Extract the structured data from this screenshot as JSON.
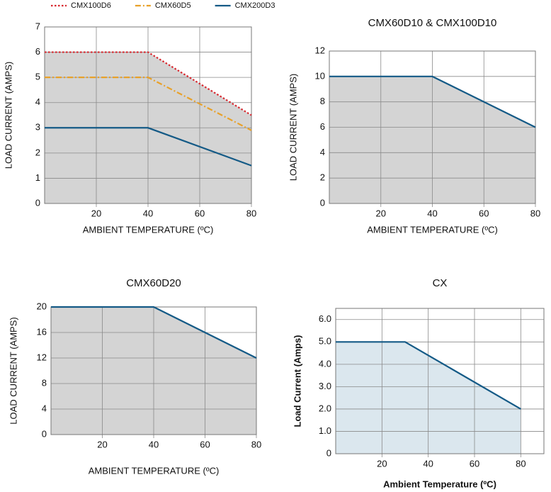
{
  "chart_data": [
    {
      "type": "line",
      "x": [
        0,
        40,
        80
      ],
      "series": [
        {
          "name": "CMX100D6",
          "color": "#d7282f",
          "dash": "dotted",
          "values": [
            6,
            6,
            3.5
          ]
        },
        {
          "name": "CMX60D5",
          "color": "#e8a12a",
          "dash": "dashdot",
          "values": [
            5,
            5,
            2.9
          ]
        },
        {
          "name": "CMX200D3",
          "color": "#145a86",
          "dash": "solid",
          "values": [
            3,
            3,
            1.5
          ]
        }
      ],
      "xlabel": "AMBIENT TEMPERATURE (ºC)",
      "ylabel": "LOAD CURRENT (AMPS)",
      "xlim": [
        0,
        80
      ],
      "xticks": [
        20,
        40,
        60,
        80
      ],
      "ylim": [
        0,
        7
      ],
      "yticks": [
        0,
        1,
        2,
        3,
        4,
        5,
        6,
        7
      ],
      "grid": true,
      "fill_color": "#d4d4d4",
      "legend": "top"
    },
    {
      "type": "line",
      "title": "CMX60D10 & CMX100D10",
      "x": [
        0,
        40,
        80
      ],
      "values": [
        10,
        10,
        6
      ],
      "color": "#145a86",
      "xlabel": "AMBIENT TEMPERATURE (ºC)",
      "ylabel": "LOAD CURRENT (AMPS)",
      "xlim": [
        0,
        80
      ],
      "xticks": [
        20,
        40,
        60,
        80
      ],
      "ylim": [
        0,
        12
      ],
      "yticks": [
        0,
        2,
        4,
        6,
        8,
        10,
        12
      ],
      "grid": true,
      "fill_color": "#d4d4d4"
    },
    {
      "type": "line",
      "title": "CMX60D20",
      "x": [
        0,
        40,
        80
      ],
      "values": [
        20,
        20,
        12
      ],
      "color": "#145a86",
      "xlabel": "AMBIENT TEMPERATURE (ºC)",
      "ylabel": "LOAD CURRENT (AMPS)",
      "xlim": [
        0,
        80
      ],
      "xticks": [
        20,
        40,
        60,
        80
      ],
      "ylim": [
        0,
        20
      ],
      "yticks": [
        0,
        4,
        8,
        12,
        16,
        20
      ],
      "grid": true,
      "fill_color": "#d4d4d4"
    },
    {
      "type": "line",
      "title": "CX",
      "x": [
        0,
        30,
        80
      ],
      "values": [
        5,
        5,
        2
      ],
      "color": "#145a86",
      "xlabel": "Ambient Temperature (ºC)",
      "ylabel": "Load Current (Amps)",
      "xlim": [
        0,
        90
      ],
      "xticks": [
        20,
        40,
        60,
        80
      ],
      "ylim": [
        0,
        6.5
      ],
      "yticks": [
        0,
        {
          "value": 1,
          "label": "1.0"
        },
        {
          "value": 2,
          "label": "2.0"
        },
        {
          "value": 3,
          "label": "3.0"
        },
        {
          "value": 4,
          "label": "4.0"
        },
        {
          "value": 5,
          "label": "5.0"
        },
        {
          "value": 6,
          "label": "6.0"
        }
      ],
      "grid": true,
      "fill_color": "#dbe7ee"
    }
  ]
}
